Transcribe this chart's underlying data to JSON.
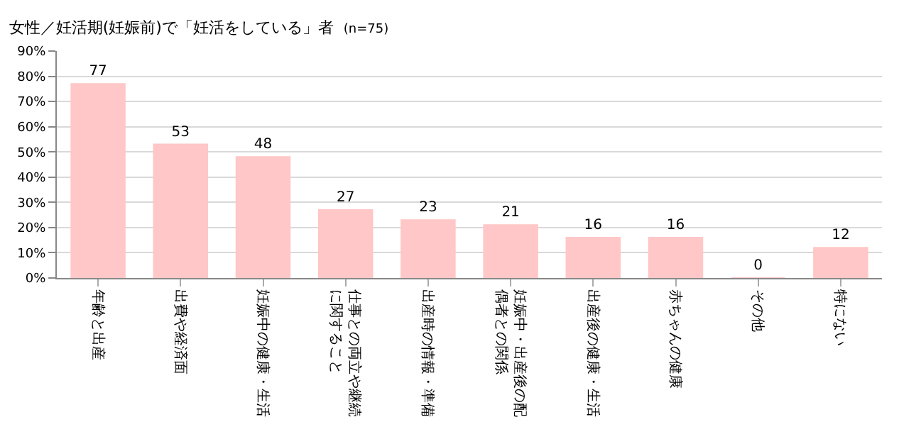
{
  "chart_data": {
    "type": "bar",
    "title": "女性／妊活期(妊娠前)で「妊活をしている」者",
    "subtitle": "(n=75)",
    "categories": [
      "年齢と出産",
      "出費や経済面",
      "妊娠中の健康・生活",
      "仕事との両立や継続に関すること",
      "出産時の情報・準備",
      "妊娠中・出産後の配偶者との関係",
      "出産後の健康・生活",
      "赤ちゃんの健康",
      "その他",
      "特にない"
    ],
    "values": [
      77,
      53,
      48,
      27,
      23,
      21,
      16,
      16,
      0,
      12
    ],
    "color": "#ffc7c7",
    "ylim": [
      0,
      90
    ],
    "yticks": [
      {
        "value": 0,
        "label": "0%"
      },
      {
        "value": 10,
        "label": "10%"
      },
      {
        "value": 20,
        "label": "20%"
      },
      {
        "value": 30,
        "label": "30%"
      },
      {
        "value": 40,
        "label": "40%"
      },
      {
        "value": 50,
        "label": "50%"
      },
      {
        "value": 60,
        "label": "60%"
      },
      {
        "value": 70,
        "label": "70%"
      },
      {
        "value": 80,
        "label": "80%"
      },
      {
        "value": 90,
        "label": "90%"
      }
    ],
    "grid": "y",
    "data_labels": true
  }
}
